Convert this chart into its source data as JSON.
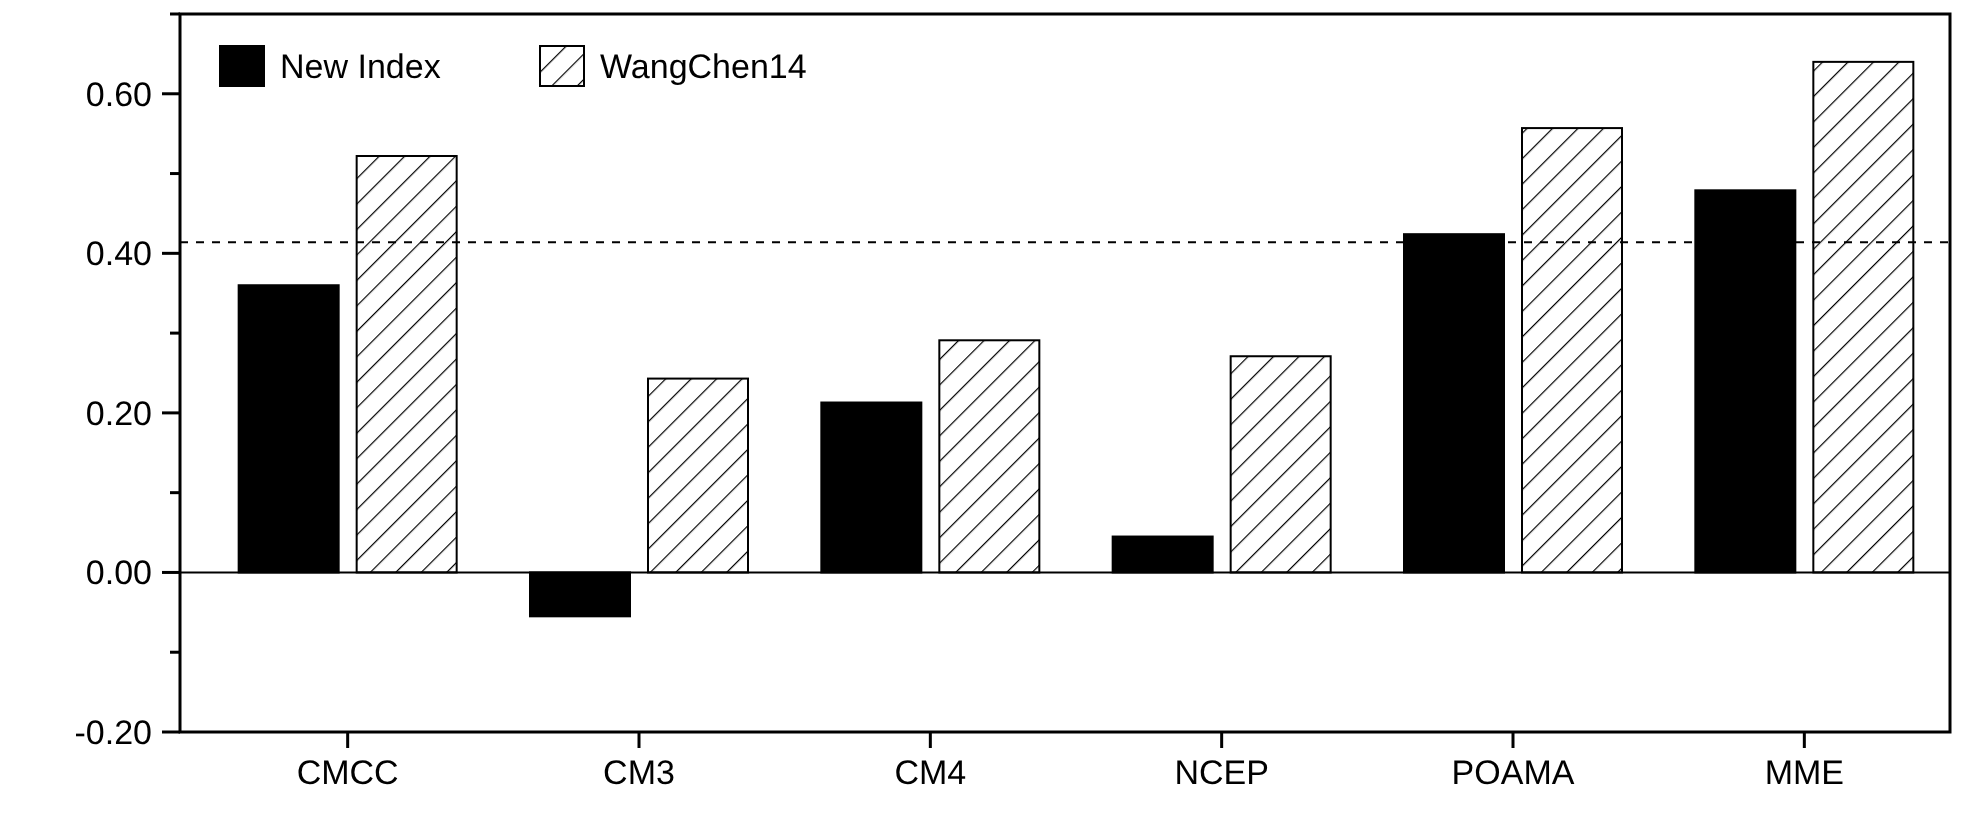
{
  "chart_data": {
    "type": "bar",
    "categories": [
      "CMCC",
      "CM3",
      "CM4",
      "NCEP",
      "POAMA",
      "MME"
    ],
    "series": [
      {
        "name": "New Index",
        "color": "#000000",
        "values": [
          0.36,
          -0.055,
          0.213,
          0.045,
          0.424,
          0.479
        ]
      },
      {
        "name": "WangChen14",
        "color": "#000000",
        "values": [
          0.522,
          0.243,
          0.291,
          0.271,
          0.557,
          0.64
        ]
      }
    ],
    "ylim": [
      -0.2,
      0.7
    ],
    "yticks": [
      {
        "value": -0.2,
        "label": "-0.20"
      },
      {
        "value": -0.1,
        "label": null
      },
      {
        "value": 0,
        "label": "0.00"
      },
      {
        "value": 0.1,
        "label": null
      },
      {
        "value": 0.2,
        "label": "0.20"
      },
      {
        "value": 0.3,
        "label": null
      },
      {
        "value": 0.4,
        "label": "0.40"
      },
      {
        "value": 0.5,
        "label": null
      },
      {
        "value": 0.6,
        "label": "0.60"
      },
      {
        "value": 0.7,
        "label": null
      }
    ],
    "ref_lines": [
      {
        "axis": "y",
        "value": 0.414,
        "line_style": "dashed"
      }
    ],
    "legend": "top left"
  }
}
